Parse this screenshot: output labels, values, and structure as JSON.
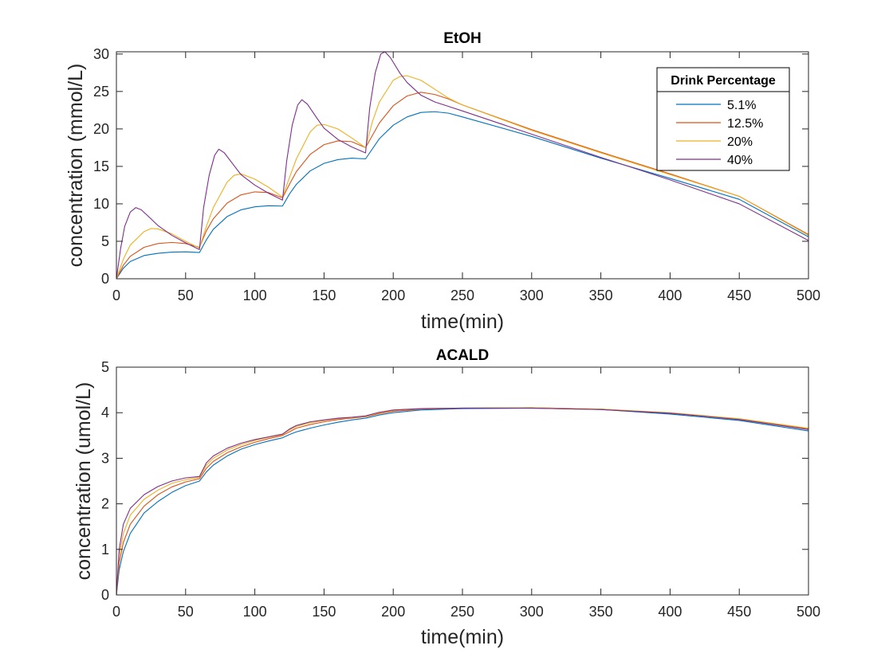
{
  "colors": {
    "axis": "#262626",
    "background": "#ffffff"
  },
  "chart_data": [
    {
      "type": "line",
      "title": "EtOH",
      "xlabel": "time(min)",
      "ylabel": "concentration (mmol/L)",
      "xlim": [
        0,
        500
      ],
      "ylim": [
        0,
        30.3
      ],
      "xticks": [
        0,
        50,
        100,
        150,
        200,
        250,
        300,
        350,
        400,
        450,
        500
      ],
      "yticks": [
        0,
        5,
        10,
        15,
        20,
        25,
        30
      ],
      "grid": false,
      "legend": {
        "title": "Drink Percentage",
        "placement": "top-right"
      },
      "series": [
        {
          "name": "5.1%",
          "color": "#0072BD",
          "x": [
            0,
            5,
            10,
            20,
            30,
            40,
            50,
            60,
            65,
            70,
            80,
            90,
            100,
            110,
            120,
            125,
            130,
            140,
            150,
            160,
            170,
            180,
            190,
            200,
            210,
            220,
            230,
            240,
            250,
            300,
            350,
            400,
            450,
            500
          ],
          "y": [
            0,
            1.4,
            2.3,
            3.1,
            3.4,
            3.55,
            3.6,
            3.5,
            5.2,
            6.6,
            8.3,
            9.2,
            9.6,
            9.75,
            9.7,
            11.3,
            12.6,
            14.4,
            15.4,
            15.9,
            16.1,
            16.0,
            18.7,
            20.5,
            21.6,
            22.2,
            22.3,
            22.1,
            21.6,
            19.0,
            16.1,
            13.4,
            10.6,
            5.6
          ]
        },
        {
          "name": "12.5%",
          "color": "#D95319",
          "x": [
            0,
            5,
            10,
            20,
            30,
            40,
            50,
            60,
            65,
            70,
            80,
            90,
            100,
            110,
            120,
            125,
            130,
            140,
            150,
            160,
            170,
            180,
            190,
            200,
            210,
            220,
            230,
            240,
            250,
            300,
            350,
            400,
            450,
            500
          ],
          "y": [
            0,
            1.8,
            3.0,
            4.2,
            4.7,
            4.85,
            4.7,
            4.2,
            6.4,
            8.0,
            10.1,
            11.2,
            11.6,
            11.5,
            10.8,
            12.6,
            14.3,
            16.6,
            17.9,
            18.4,
            18.3,
            17.5,
            20.8,
            23.1,
            24.4,
            24.9,
            24.6,
            24.0,
            23.2,
            19.9,
            16.9,
            14.0,
            11.0,
            5.9
          ]
        },
        {
          "name": "20%",
          "color": "#EDB120",
          "x": [
            0,
            5,
            10,
            20,
            25,
            30,
            40,
            50,
            60,
            65,
            70,
            80,
            85,
            90,
            100,
            110,
            120,
            125,
            130,
            140,
            145,
            150,
            160,
            170,
            180,
            185,
            190,
            200,
            205,
            210,
            220,
            230,
            240,
            250,
            300,
            350,
            400,
            450,
            500
          ],
          "y": [
            0,
            2.6,
            4.5,
            6.3,
            6.7,
            6.65,
            6.0,
            5.0,
            4.1,
            7.0,
            9.5,
            12.9,
            13.8,
            14.0,
            13.3,
            12.2,
            10.9,
            13.5,
            16.0,
            19.6,
            20.5,
            20.6,
            20.0,
            18.8,
            17.5,
            21.0,
            23.6,
            26.5,
            27.0,
            27.1,
            26.5,
            25.3,
            24.1,
            23.2,
            19.8,
            16.8,
            13.9,
            11.0,
            5.8
          ]
        },
        {
          "name": "40%",
          "color": "#7E2F8E",
          "x": [
            0,
            3,
            6,
            10,
            14,
            18,
            25,
            30,
            40,
            50,
            60,
            63,
            67,
            71,
            74,
            78,
            85,
            90,
            100,
            110,
            120,
            123,
            127,
            131,
            134,
            138,
            145,
            150,
            160,
            170,
            180,
            183,
            187,
            191,
            194,
            198,
            205,
            210,
            220,
            230,
            240,
            250,
            300,
            350,
            400,
            450,
            500
          ],
          "y": [
            0,
            4.0,
            7.0,
            8.9,
            9.5,
            9.2,
            8.0,
            7.1,
            5.8,
            4.8,
            3.9,
            9.5,
            13.8,
            16.5,
            17.3,
            16.8,
            15.1,
            13.9,
            12.5,
            11.4,
            10.5,
            15.7,
            20.5,
            23.2,
            23.9,
            23.3,
            21.4,
            20.1,
            18.6,
            17.6,
            16.8,
            22.8,
            27.5,
            30.0,
            30.3,
            29.5,
            27.4,
            26.2,
            24.5,
            23.6,
            23.0,
            22.4,
            19.3,
            16.2,
            13.2,
            10.0,
            5.1
          ]
        }
      ]
    },
    {
      "type": "line",
      "title": "ACALD",
      "xlabel": "time(min)",
      "ylabel": "concentration (umol/L)",
      "xlim": [
        0,
        500
      ],
      "ylim": [
        0,
        5
      ],
      "xticks": [
        0,
        50,
        100,
        150,
        200,
        250,
        300,
        350,
        400,
        450,
        500
      ],
      "yticks": [
        0,
        1,
        2,
        3,
        4,
        5
      ],
      "grid": false,
      "legend": null,
      "series": [
        {
          "name": "5.1%",
          "color": "#0072BD",
          "x": [
            0,
            2,
            5,
            10,
            20,
            30,
            40,
            50,
            60,
            65,
            70,
            80,
            90,
            100,
            110,
            120,
            125,
            130,
            140,
            150,
            160,
            170,
            180,
            190,
            200,
            220,
            250,
            300,
            350,
            400,
            450,
            500
          ],
          "y": [
            0,
            0.55,
            0.95,
            1.35,
            1.8,
            2.05,
            2.25,
            2.4,
            2.5,
            2.7,
            2.85,
            3.05,
            3.2,
            3.3,
            3.38,
            3.45,
            3.52,
            3.58,
            3.66,
            3.73,
            3.79,
            3.84,
            3.88,
            3.95,
            4.0,
            4.06,
            4.09,
            4.1,
            4.07,
            3.97,
            3.83,
            3.6
          ]
        },
        {
          "name": "12.5%",
          "color": "#D95319",
          "x": [
            0,
            2,
            5,
            10,
            20,
            30,
            40,
            50,
            60,
            65,
            70,
            80,
            90,
            100,
            110,
            120,
            125,
            130,
            140,
            150,
            160,
            170,
            180,
            190,
            200,
            220,
            250,
            300,
            350,
            400,
            450,
            500
          ],
          "y": [
            0,
            0.7,
            1.15,
            1.55,
            1.95,
            2.2,
            2.37,
            2.48,
            2.55,
            2.78,
            2.93,
            3.12,
            3.25,
            3.35,
            3.43,
            3.5,
            3.58,
            3.66,
            3.74,
            3.8,
            3.85,
            3.88,
            3.91,
            3.98,
            4.03,
            4.08,
            4.1,
            4.11,
            4.08,
            3.99,
            3.86,
            3.65
          ]
        },
        {
          "name": "20%",
          "color": "#EDB120",
          "x": [
            0,
            2,
            5,
            10,
            20,
            30,
            40,
            50,
            60,
            65,
            70,
            80,
            90,
            100,
            110,
            120,
            125,
            130,
            140,
            150,
            160,
            170,
            180,
            190,
            200,
            220,
            250,
            300,
            350,
            400,
            450,
            500
          ],
          "y": [
            0,
            0.85,
            1.35,
            1.75,
            2.1,
            2.3,
            2.45,
            2.53,
            2.58,
            2.85,
            3.0,
            3.18,
            3.3,
            3.39,
            3.46,
            3.52,
            3.62,
            3.7,
            3.78,
            3.83,
            3.87,
            3.89,
            3.92,
            4.0,
            4.05,
            4.09,
            4.1,
            4.11,
            4.08,
            4.0,
            3.87,
            3.66
          ]
        },
        {
          "name": "40%",
          "color": "#7E2F8E",
          "x": [
            0,
            2,
            5,
            10,
            20,
            30,
            40,
            50,
            60,
            65,
            70,
            80,
            90,
            100,
            110,
            120,
            125,
            130,
            140,
            150,
            160,
            170,
            180,
            190,
            200,
            220,
            250,
            300,
            350,
            400,
            450,
            500
          ],
          "y": [
            0,
            1.0,
            1.55,
            1.9,
            2.2,
            2.38,
            2.5,
            2.57,
            2.6,
            2.9,
            3.05,
            3.22,
            3.33,
            3.41,
            3.47,
            3.53,
            3.64,
            3.72,
            3.8,
            3.84,
            3.88,
            3.9,
            3.93,
            4.01,
            4.06,
            4.09,
            4.1,
            4.1,
            4.07,
            3.99,
            3.85,
            3.63
          ]
        }
      ]
    }
  ]
}
